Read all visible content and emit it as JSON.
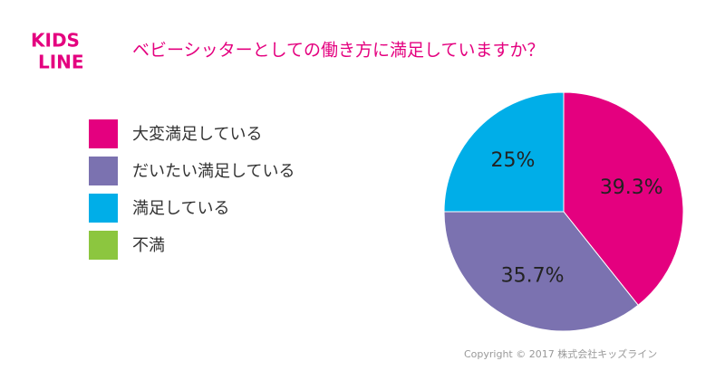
{
  "logo": {
    "top": "KIDS",
    "bottom": "LINE"
  },
  "footer": "Copyright © 2017 株式会社キッズライン",
  "chart_data": {
    "type": "pie",
    "title": "ベビーシッターとしての働き方に満足していますか？",
    "categories": [
      "大変満足している",
      "だいたい満足している",
      "満足している",
      "不満"
    ],
    "values": [
      39.3,
      35.7,
      25,
      0
    ],
    "value_labels": [
      "39.3%",
      "35.7%",
      "25%",
      null
    ],
    "colors": [
      "#e4007f",
      "#7b72b0",
      "#00aee8",
      "#8cc63f"
    ],
    "legend": "left"
  }
}
